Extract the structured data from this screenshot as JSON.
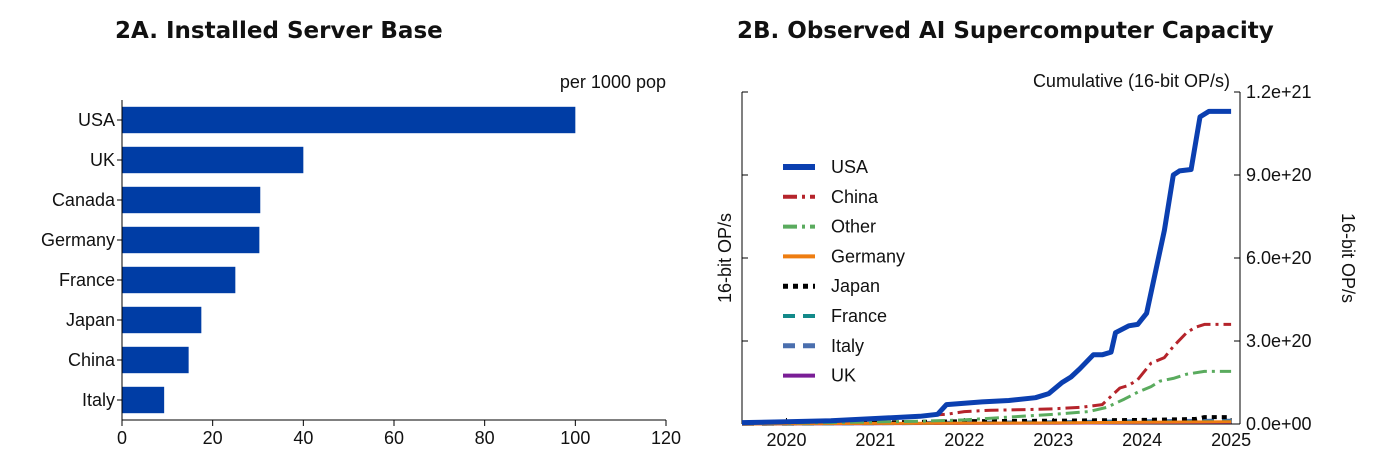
{
  "chart_data": [
    {
      "type": "bar",
      "orientation": "horizontal",
      "title": "2A. Installed Server Base",
      "unit_label": "per 1000 pop",
      "categories": [
        "USA",
        "UK",
        "Canada",
        "Germany",
        "France",
        "Japan",
        "China",
        "Italy"
      ],
      "values": [
        100,
        40,
        30.5,
        30.3,
        25,
        17.5,
        14.7,
        9.3
      ],
      "xlim": [
        0,
        120
      ],
      "xticks": [
        "0",
        "20",
        "40",
        "60",
        "80",
        "100",
        "120"
      ],
      "bar_color": "#003da5",
      "grid": false
    },
    {
      "type": "line",
      "title": "2B. Observed AI Supercomputer Capacity",
      "unit_label": "Cumulative (16-bit OP/s)",
      "ylabel_left": "16-bit OP/s",
      "ylabel_right": "16-bit OP/s",
      "xlim": [
        2019.5,
        2025.1
      ],
      "ylim": [
        0,
        1.2e+21
      ],
      "xticks": [
        "2020",
        "2021",
        "2022",
        "2023",
        "2024",
        "2025"
      ],
      "yticks_right": [
        "0.0e+00",
        "3.0e+20",
        "6.0e+20",
        "9.0e+20",
        "1.2e+21"
      ],
      "legend_position": "upper-left",
      "grid": false,
      "series": [
        {
          "name": "USA",
          "color": "#0b3fb0",
          "dash": "solid",
          "width": 5,
          "x": [
            2019.5,
            2020.0,
            2020.5,
            2021.0,
            2021.5,
            2021.7,
            2021.8,
            2022.0,
            2022.2,
            2022.5,
            2022.8,
            2022.95,
            2023.1,
            2023.2,
            2023.3,
            2023.45,
            2023.55,
            2023.65,
            2023.7,
            2023.85,
            2023.95,
            2024.05,
            2024.15,
            2024.25,
            2024.35,
            2024.42,
            2024.55,
            2024.65,
            2024.75,
            2025.0
          ],
          "y": [
            5e+18,
            8e+18,
            1.2e+19,
            2e+19,
            2.8e+19,
            3.5e+19,
            7e+19,
            7.5e+19,
            8e+19,
            8.5e+19,
            9.5e+19,
            1.1e+20,
            1.5e+20,
            1.7e+20,
            2e+20,
            2.5e+20,
            2.5e+20,
            2.6e+20,
            3.3e+20,
            3.55e+20,
            3.6e+20,
            4e+20,
            5.5e+20,
            7e+20,
            9e+20,
            9.15e+20,
            9.2e+20,
            1.11e+21,
            1.13e+21,
            1.13e+21
          ]
        },
        {
          "name": "China",
          "color": "#b5242b",
          "dash": "dashdot",
          "width": 3,
          "x": [
            2019.5,
            2020.0,
            2020.5,
            2021.0,
            2021.5,
            2021.8,
            2022.0,
            2022.3,
            2022.7,
            2023.0,
            2023.3,
            2023.55,
            2023.75,
            2023.85,
            2023.95,
            2024.1,
            2024.25,
            2024.35,
            2024.5,
            2024.6,
            2024.7,
            2025.0
          ],
          "y": [
            3e+18,
            5e+18,
            1e+19,
            2e+19,
            3e+19,
            3.5e+19,
            4.5e+19,
            5e+19,
            5.2e+19,
            5.5e+19,
            6e+19,
            7e+19,
            1.3e+20,
            1.4e+20,
            1.6e+20,
            2.2e+20,
            2.4e+20,
            2.8e+20,
            3.3e+20,
            3.5e+20,
            3.6e+20,
            3.6e+20
          ]
        },
        {
          "name": "Other",
          "color": "#5aab5e",
          "dash": "dashdot",
          "width": 3,
          "x": [
            2019.5,
            2020.5,
            2021.5,
            2022.0,
            2022.5,
            2023.0,
            2023.4,
            2023.6,
            2023.8,
            2023.95,
            2024.1,
            2024.2,
            2024.35,
            2024.5,
            2024.7,
            2025.0
          ],
          "y": [
            2e+18,
            5e+18,
            1e+19,
            1.5e+19,
            2.5e+19,
            3.5e+19,
            4.5e+19,
            6e+19,
            9e+19,
            1.15e+20,
            1.35e+20,
            1.55e+20,
            1.65e+20,
            1.8e+20,
            1.9e+20,
            1.9e+20
          ]
        },
        {
          "name": "Germany",
          "color": "#ee7d11",
          "dash": "solid",
          "width": 3,
          "x": [
            2019.5,
            2021.0,
            2023.0,
            2024.0,
            2025.0
          ],
          "y": [
            0.0,
            2e+18,
            4e+18,
            6e+18,
            8e+18
          ]
        },
        {
          "name": "Japan",
          "color": "#000000",
          "dash": "dotted",
          "width": 4,
          "x": [
            2019.5,
            2021.0,
            2022.0,
            2023.0,
            2024.0,
            2024.6,
            2024.7,
            2025.0
          ],
          "y": [
            2e+18,
            5e+18,
            1e+19,
            1.2e+19,
            1.5e+19,
            1.8e+19,
            2.5e+19,
            2.5e+19
          ]
        },
        {
          "name": "France",
          "color": "#138a8a",
          "dash": "dashed",
          "width": 3,
          "x": [
            2019.5,
            2021.0,
            2023.0,
            2024.0,
            2025.0
          ],
          "y": [
            0.0,
            2e+18,
            5e+18,
            8e+18,
            1e+19
          ]
        },
        {
          "name": "Italy",
          "color": "#4a6fae",
          "dash": "dashed",
          "width": 4,
          "x": [
            2019.5,
            2021.0,
            2023.0,
            2024.0,
            2025.0
          ],
          "y": [
            0.0,
            3e+18,
            6e+18,
            1e+19,
            1.2e+19
          ]
        },
        {
          "name": "UK",
          "color": "#7a1e96",
          "dash": "solid",
          "width": 3,
          "x": [
            2019.5,
            2021.0,
            2023.0,
            2024.0,
            2025.0
          ],
          "y": [
            0.0,
            1e+18,
            3e+18,
            5e+18,
            6e+18
          ]
        }
      ]
    }
  ]
}
